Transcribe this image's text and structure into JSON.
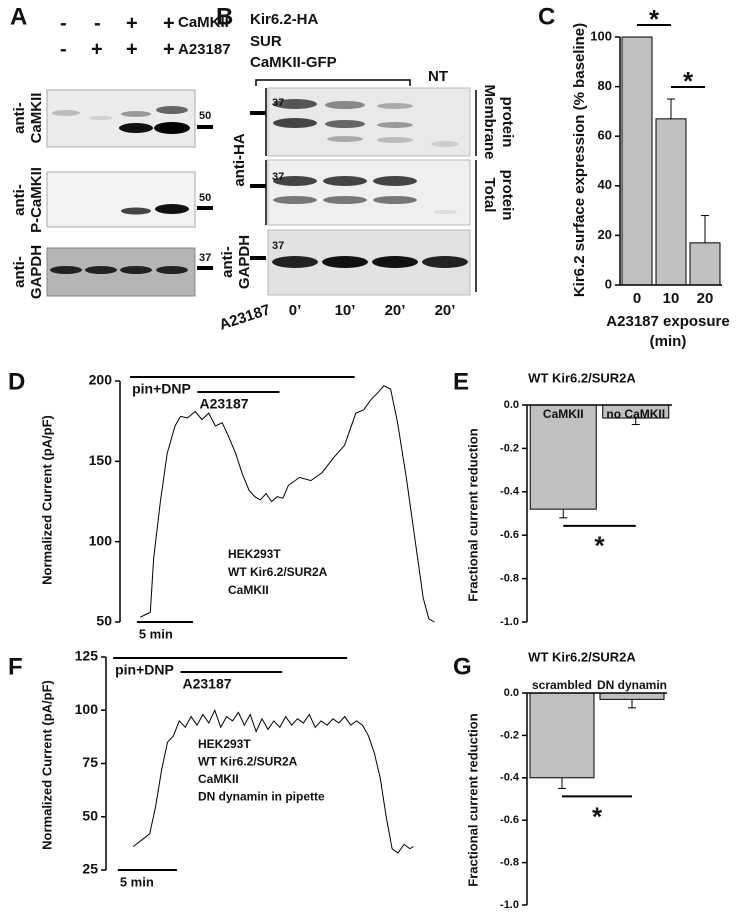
{
  "panel_labels": [
    "A",
    "B",
    "C",
    "D",
    "E",
    "F",
    "G"
  ],
  "blot_a": {
    "signs": [
      [
        "-",
        "-",
        "+",
        "+"
      ],
      [
        "-",
        "+",
        "+",
        "+"
      ]
    ],
    "conditions": [
      "CaMKII",
      "A23187"
    ],
    "antibodies": [
      [
        "anti-",
        "CaMKII"
      ],
      [
        "anti-",
        "P-CaMKII"
      ],
      [
        "anti-",
        "GAPDH"
      ]
    ],
    "markers": [
      "50",
      "50",
      "37"
    ]
  },
  "blot_b": {
    "constructs": [
      "Kir6.2-HA",
      "SUR",
      "CaMKII-GFP"
    ],
    "control": "NT",
    "antibodies": [
      "anti-HA",
      [
        "anti-",
        "GAPDH"
      ]
    ],
    "fractions": [
      [
        "Membrane",
        "protein"
      ],
      [
        "Total",
        "protein"
      ]
    ],
    "markers": [
      "37",
      "37",
      "37"
    ],
    "treatment": "A23187",
    "times": [
      "0’",
      "10’",
      "20’",
      "20’"
    ]
  },
  "chart_data": [
    {
      "type": "bar",
      "categories": [
        "0",
        "10",
        "20"
      ],
      "values": [
        100,
        67,
        17
      ],
      "errors": [
        null,
        8,
        11
      ],
      "color": "#c0c0c0",
      "ylim": [
        0,
        100
      ],
      "yticks": [
        0,
        20,
        40,
        60,
        80,
        100
      ],
      "ylabel": "Kir6.2 surface expression (% baseline)",
      "xlabel": [
        "A23187 exposure",
        "(min)"
      ],
      "significance": [
        {
          "label": "*",
          "between": [
            0,
            1
          ]
        },
        {
          "label": "*",
          "between": [
            1,
            2
          ]
        }
      ]
    },
    {
      "type": "line",
      "color": "#000000",
      "x": [
        0.3,
        0.9,
        1.2,
        1.5,
        2.1,
        2.7,
        3.4,
        3.9,
        4.5,
        5.2,
        5.8,
        6.4,
        7.0,
        7.6,
        8.2,
        8.8,
        9.4,
        10,
        10.5,
        11,
        11.5,
        12,
        12.5,
        13,
        13.5,
        14.5,
        15.5,
        16.5,
        17.5,
        18.5,
        19,
        19.5,
        20.2,
        20.8,
        21.5,
        22,
        22.6,
        23.2,
        24,
        24.8,
        25.5,
        26,
        26.5
      ],
      "values": [
        53,
        55,
        56,
        90,
        125,
        155,
        172,
        178,
        177,
        181,
        176,
        180,
        172,
        174,
        165,
        155,
        142,
        132,
        128,
        126,
        130,
        125,
        128,
        127,
        135,
        140,
        138,
        143,
        152,
        160,
        170,
        180,
        182,
        188,
        193,
        197,
        195,
        175,
        140,
        100,
        65,
        52,
        50
      ],
      "xlim": [
        -1.5,
        27
      ],
      "ylim": [
        50,
        200
      ],
      "yticks": [
        50,
        100,
        150,
        200
      ],
      "ylabel": "Normalized Current (pA/pF)",
      "annotations": [
        {
          "label": "pin+DNP",
          "start": -0.6,
          "end": 19.4
        },
        {
          "label": "A23187",
          "start": 5.4,
          "end": 12.7
        }
      ],
      "scale_bar": {
        "label": "5 min",
        "start": 0,
        "length": 5
      },
      "notes": [
        "HEK293T",
        "WT Kir6.2/SUR2A",
        "CaMKII"
      ]
    },
    {
      "type": "bar",
      "title": "WT Kir6.2/SUR2A",
      "categories": [
        "CaMKII",
        "no CaMKII"
      ],
      "values": [
        -0.48,
        -0.06
      ],
      "errors": [
        0.04,
        0.03
      ],
      "color": "#c0c0c0",
      "ylim": [
        -1,
        0
      ],
      "yticks": [
        {
          "value": 0,
          "label": "0.0"
        },
        -0.2,
        -0.4,
        -0.6,
        -0.8,
        {
          "value": -1,
          "label": "-1.0"
        }
      ],
      "ylabel": "Fractional current reduction",
      "significance": [
        {
          "label": "*",
          "between": [
            0,
            1
          ]
        }
      ]
    },
    {
      "type": "line",
      "color": "#000000",
      "x": [
        1.3,
        2,
        2.7,
        3.2,
        3.7,
        4.2,
        4.7,
        5.2,
        5.7,
        6.2,
        6.7,
        7.2,
        7.7,
        8.2,
        8.7,
        9.2,
        9.7,
        10.2,
        10.7,
        11.2,
        11.7,
        12.2,
        12.7,
        13.2,
        13.7,
        14.2,
        14.7,
        15.2,
        15.7,
        16.2,
        16.7,
        17.2,
        17.7,
        18.2,
        18.7,
        19.2,
        19.7,
        20.2,
        20.7,
        21.2,
        21.7,
        22.2,
        22.7,
        23.2,
        23.7,
        24.2,
        24.7,
        25.0
      ],
      "values": [
        36,
        39,
        42,
        55,
        72,
        85,
        88,
        95,
        92,
        97,
        93,
        98,
        94,
        100,
        92,
        97,
        95,
        99,
        93,
        98,
        90,
        96,
        91,
        95,
        92,
        97,
        93,
        96,
        94,
        98,
        92,
        95,
        93,
        96,
        94,
        97,
        93,
        95,
        93,
        88,
        80,
        68,
        50,
        35,
        33,
        37,
        35,
        36
      ],
      "xlim": [
        -1,
        27
      ],
      "ylim": [
        25,
        125
      ],
      "yticks": [
        25,
        50,
        75,
        100,
        125
      ],
      "ylabel": "Normalized Current (pA/pF)",
      "annotations": [
        {
          "label": "pin+DNP",
          "start": -0.4,
          "end": 19.4
        },
        {
          "label": "A23187",
          "start": 5.3,
          "end": 13.9
        }
      ],
      "scale_bar": {
        "label": "5 min",
        "start": 0,
        "length": 5
      },
      "notes": [
        "HEK293T",
        "WT Kir6.2/SUR2A",
        "CaMKII",
        "DN dynamin in pipette"
      ]
    },
    {
      "type": "bar",
      "title": "WT Kir6.2/SUR2A",
      "categories": [
        "scrambled",
        "DN dynamin"
      ],
      "values": [
        -0.4,
        -0.03
      ],
      "errors": [
        0.05,
        0.04
      ],
      "color": "#c0c0c0",
      "ylim": [
        -1,
        0
      ],
      "yticks": [
        {
          "value": 0,
          "label": "0.0"
        },
        -0.2,
        -0.4,
        -0.6,
        -0.8,
        {
          "value": -1,
          "label": "-1.0"
        }
      ],
      "ylabel": "Fractional current reduction",
      "significance": [
        {
          "label": "*",
          "between": [
            0,
            1
          ]
        }
      ]
    }
  ]
}
